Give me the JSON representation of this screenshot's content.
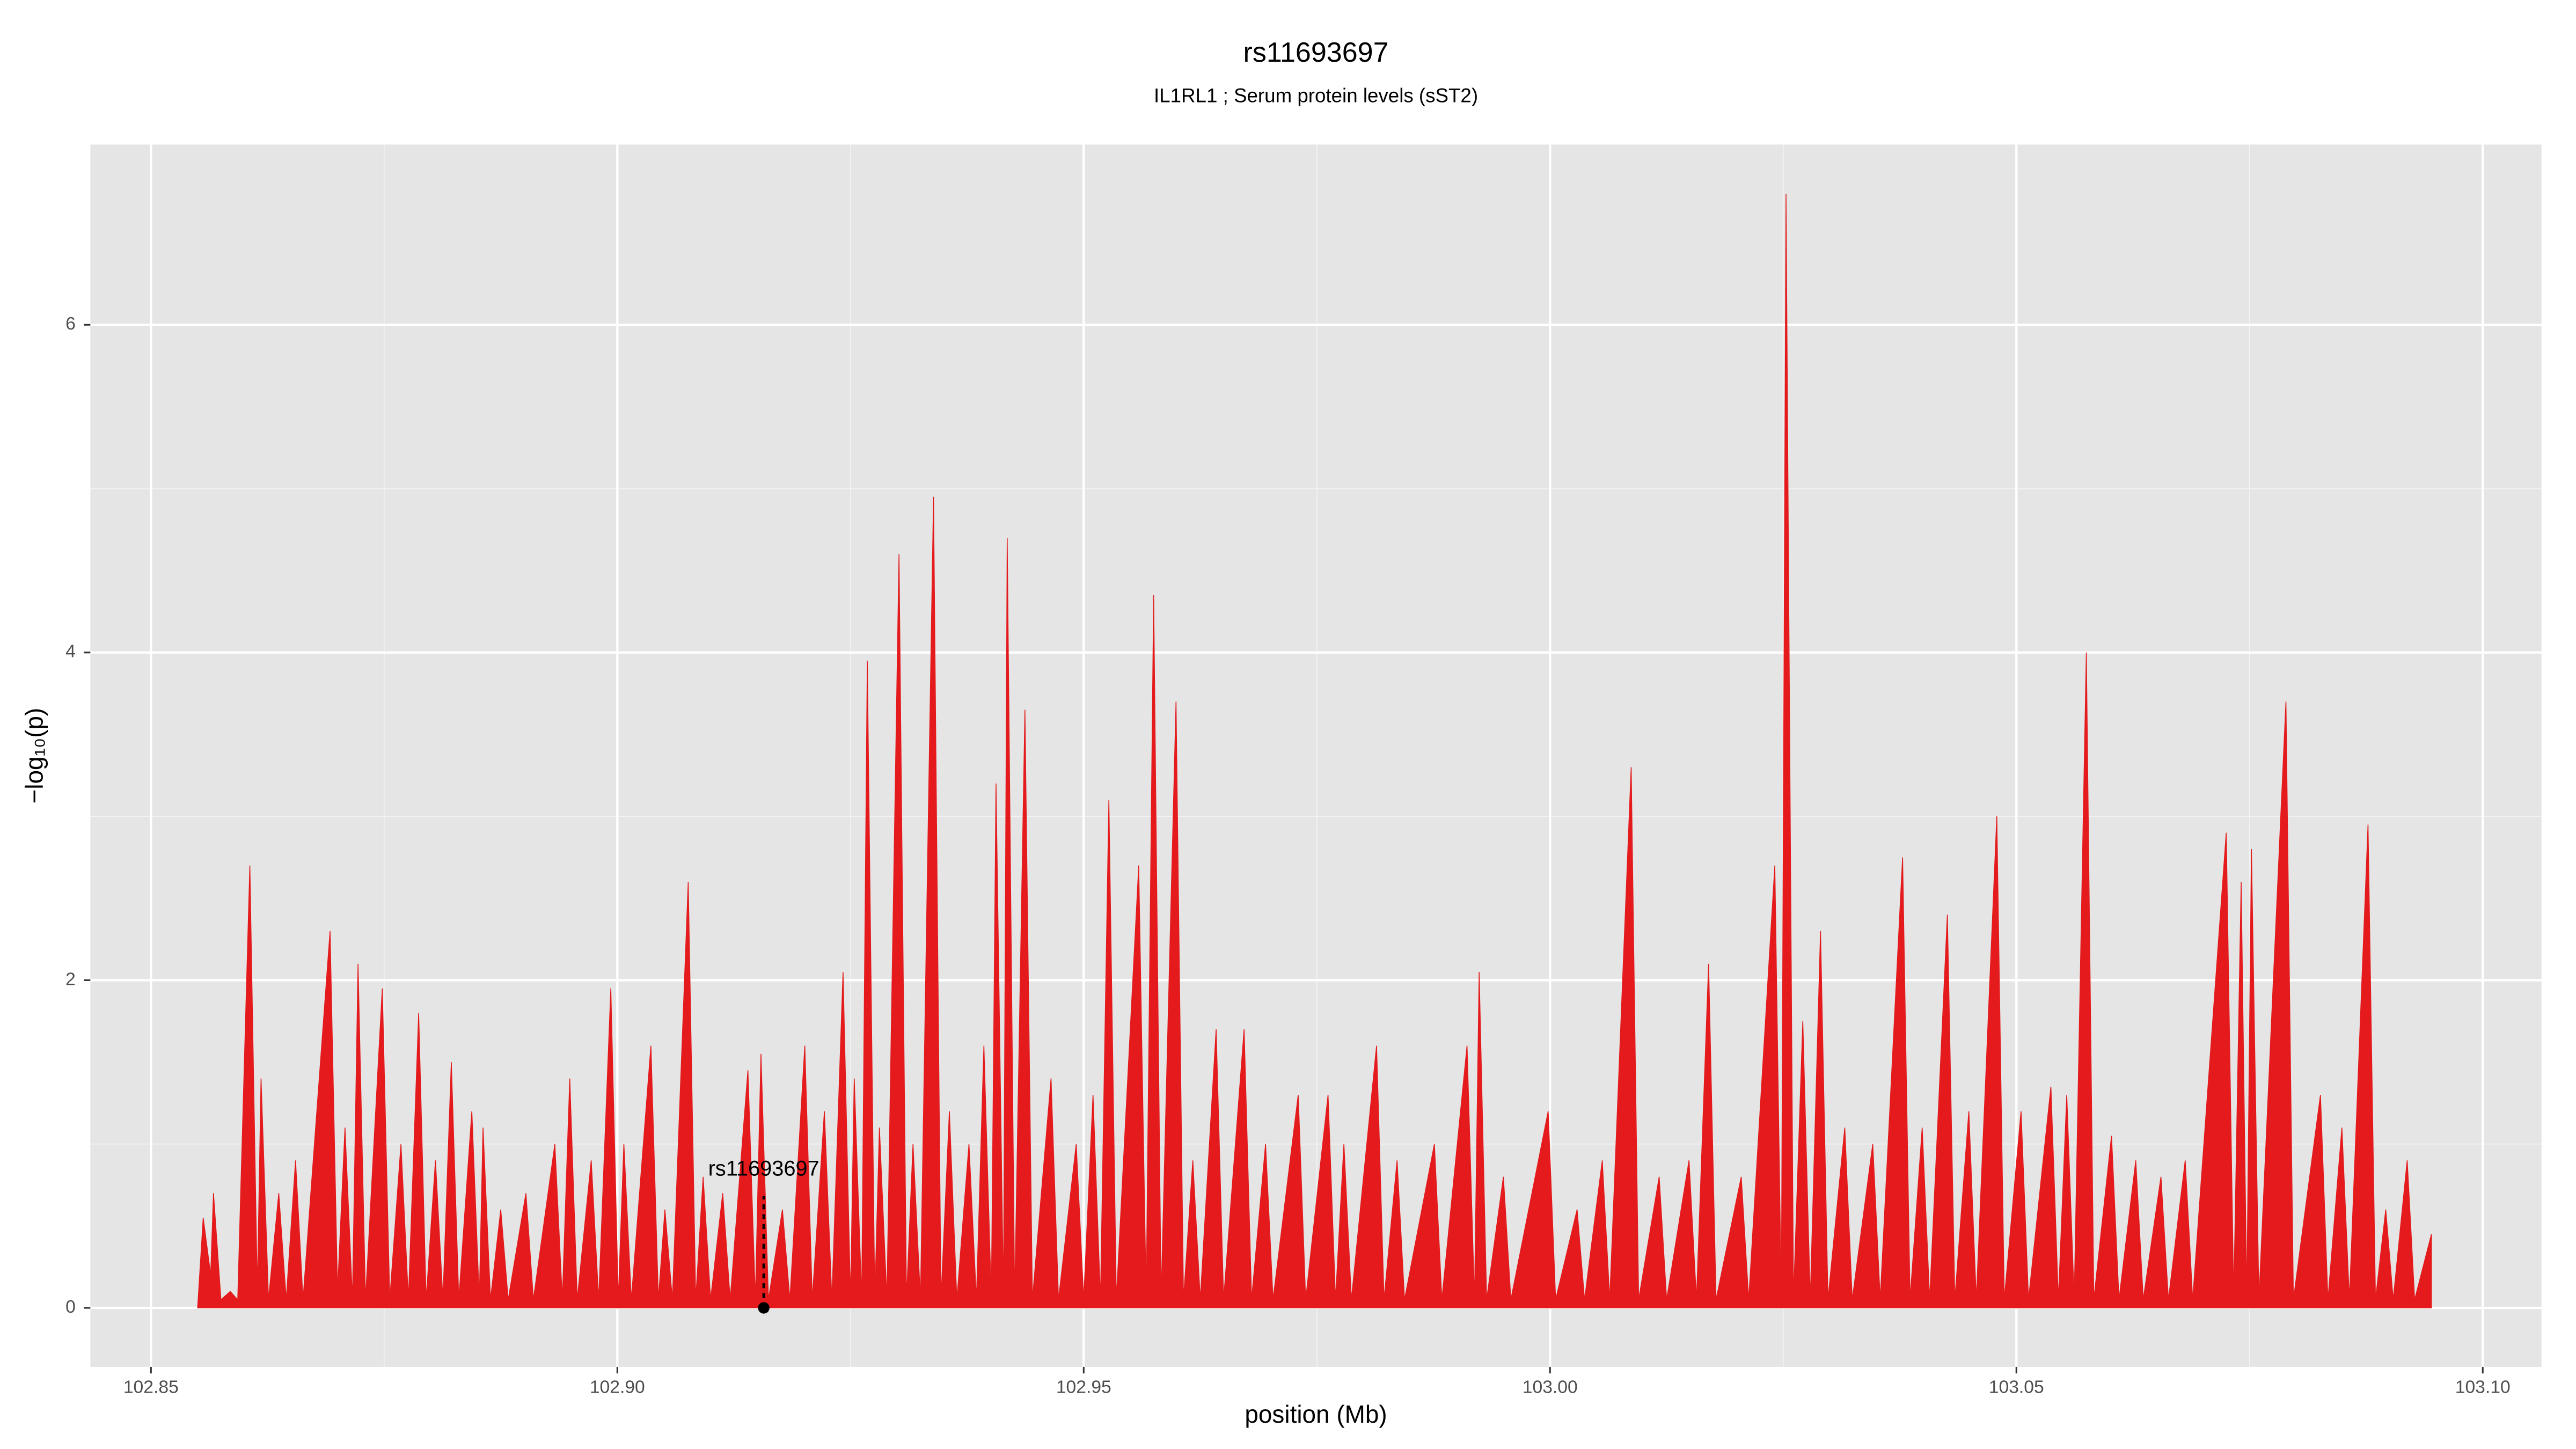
{
  "chart_data": {
    "type": "area",
    "title": "rs11693697",
    "subtitle": "IL1RL1 ; Serum protein levels (sST2)",
    "x_label": "position (Mb)",
    "y_label": "−log₁₀(p)",
    "xlim": [
      102.8435,
      103.1063
    ],
    "ylim": [
      -0.36,
      7.1
    ],
    "xticks": [
      {
        "value": 102.85,
        "label": "102.85"
      },
      {
        "value": 102.9,
        "label": "102.90"
      },
      102.95,
      {
        "value": 103,
        "label": "103.00"
      },
      103.05,
      {
        "value": 103.1,
        "label": "103.10"
      }
    ],
    "yticks": [
      0,
      2,
      4,
      6
    ],
    "grid": true,
    "x": [
      102.855,
      102.8556,
      102.8564,
      102.8567,
      102.8575,
      102.8585,
      102.8593,
      102.8606,
      102.8614,
      102.8618,
      102.8626,
      102.8637,
      102.8645,
      102.8655,
      102.8663,
      102.8692,
      102.87,
      102.8708,
      102.8716,
      102.8722,
      102.873,
      102.8748,
      102.8756,
      102.8768,
      102.8776,
      102.8787,
      102.8795,
      102.8805,
      102.8813,
      102.8822,
      102.883,
      102.8844,
      102.8852,
      102.8856,
      102.8864,
      102.8875,
      102.8883,
      102.8902,
      102.891,
      102.8933,
      102.8941,
      102.8949,
      102.8957,
      102.8972,
      102.898,
      102.8993,
      102.9001,
      102.9007,
      102.9015,
      102.9036,
      102.9044,
      102.9051,
      102.9059,
      102.9076,
      102.9084,
      102.9092,
      102.91,
      102.9113,
      102.9121,
      102.914,
      102.9148,
      102.9154,
      102.9162,
      102.9177,
      102.9185,
      102.9201,
      102.9209,
      102.9222,
      102.923,
      102.9242,
      102.925,
      102.9254,
      102.9262,
      102.9268,
      102.9276,
      102.9281,
      102.9289,
      102.9302,
      102.931,
      102.9317,
      102.9325,
      102.9339,
      102.9347,
      102.9356,
      102.9364,
      102.9377,
      102.9385,
      102.9393,
      102.9401,
      102.9406,
      102.9414,
      102.9418,
      102.9426,
      102.9437,
      102.9445,
      102.9465,
      102.9473,
      102.9492,
      102.95,
      102.951,
      102.9518,
      102.9527,
      102.9535,
      102.9559,
      102.9567,
      102.9575,
      102.9583,
      102.9599,
      102.9607,
      102.9617,
      102.9625,
      102.9642,
      102.965,
      102.9672,
      102.968,
      102.9695,
      102.9703,
      102.973,
      102.9738,
      102.9762,
      102.977,
      102.9779,
      102.9787,
      102.9814,
      102.9822,
      102.9836,
      102.9844,
      102.9876,
      102.9884,
      102.9911,
      102.9919,
      102.9924,
      102.9932,
      102.995,
      102.9958,
      102.9998,
      103.0006,
      103.0029,
      103.0037,
      103.0056,
      103.0064,
      103.0087,
      103.0095,
      103.0117,
      103.0125,
      103.0149,
      103.0157,
      103.017,
      103.0178,
      103.0205,
      103.0213,
      103.0241,
      103.0248,
      103.0253,
      103.0261,
      103.0271,
      103.0279,
      103.029,
      103.0298,
      103.0316,
      103.0324,
      103.0346,
      103.0354,
      103.0378,
      103.0386,
      103.0399,
      103.0407,
      103.0426,
      103.0434,
      103.0449,
      103.0457,
      103.0479,
      103.0487,
      103.0505,
      103.0513,
      103.0537,
      103.0545,
      103.0554,
      103.0562,
      103.0575,
      103.0583,
      103.0602,
      103.061,
      103.0628,
      103.0636,
      103.0655,
      103.0663,
      103.0681,
      103.0689,
      103.0725,
      103.0733,
      103.0741,
      103.0747,
      103.0752,
      103.076,
      103.0789,
      103.0797,
      103.0826,
      103.0834,
      103.0849,
      103.0857,
      103.0877,
      103.0885,
      103.0896,
      103.0904,
      103.0919,
      103.0927,
      103.0945
    ],
    "series": [
      {
        "color": "#e41a1c",
        "values": [
          0,
          0.55,
          0.2,
          0.7,
          0.05,
          0.1,
          0.05,
          2.7,
          0.1,
          1.4,
          0.05,
          0.7,
          0.05,
          0.9,
          0.05,
          2.3,
          0.1,
          1.1,
          0.05,
          2.1,
          0.05,
          1.95,
          0.05,
          1.0,
          0.05,
          1.8,
          0.05,
          0.9,
          0.05,
          1.5,
          0.05,
          1.2,
          0.05,
          1.1,
          0.05,
          0.6,
          0.05,
          0.7,
          0.05,
          1.0,
          0.05,
          1.4,
          0.05,
          0.9,
          0.05,
          1.95,
          0.05,
          1.0,
          0.05,
          1.6,
          0.05,
          0.6,
          0.05,
          2.6,
          0.05,
          0.8,
          0.05,
          0.7,
          0.05,
          1.45,
          0.05,
          1.55,
          0.05,
          0.6,
          0.05,
          1.6,
          0.05,
          1.2,
          0.05,
          2.05,
          0.05,
          1.4,
          0.05,
          3.95,
          0.05,
          1.1,
          0.05,
          4.6,
          0.05,
          1.0,
          0.05,
          4.95,
          0.05,
          1.2,
          0.05,
          1.0,
          0.05,
          1.6,
          0.05,
          3.2,
          0.05,
          4.7,
          0.05,
          3.65,
          0.05,
          1.4,
          0.05,
          1.0,
          0.05,
          1.3,
          0.05,
          3.1,
          0.05,
          2.7,
          0.05,
          4.35,
          0.05,
          3.7,
          0.05,
          0.9,
          0.05,
          1.7,
          0.05,
          1.7,
          0.05,
          1.0,
          0.05,
          1.3,
          0.05,
          1.3,
          0.05,
          1.0,
          0.05,
          1.6,
          0.05,
          0.9,
          0.05,
          1.0,
          0.05,
          1.6,
          0.05,
          2.05,
          0.05,
          0.8,
          0.05,
          1.2,
          0.05,
          0.6,
          0.05,
          0.9,
          0.05,
          3.3,
          0.05,
          0.8,
          0.05,
          0.9,
          0.05,
          2.1,
          0.05,
          0.8,
          0.05,
          2.7,
          0.05,
          6.8,
          0.05,
          1.75,
          0.05,
          2.3,
          0.05,
          1.1,
          0.05,
          1.0,
          0.05,
          2.75,
          0.05,
          1.1,
          0.05,
          2.4,
          0.05,
          1.2,
          0.05,
          3.0,
          0.05,
          1.2,
          0.05,
          1.35,
          0.05,
          1.3,
          0.05,
          4.0,
          0.05,
          1.05,
          0.05,
          0.9,
          0.05,
          0.8,
          0.05,
          0.9,
          0.05,
          2.9,
          0.05,
          2.6,
          0.05,
          2.8,
          0.05,
          3.7,
          0.05,
          1.3,
          0.05,
          1.1,
          0.05,
          2.95,
          0.05,
          0.6,
          0.05,
          0.9,
          0.05,
          0.45
        ]
      }
    ],
    "annotations": [
      {
        "text": "rs11693697",
        "x": 102.9157,
        "y": 0
      }
    ]
  }
}
